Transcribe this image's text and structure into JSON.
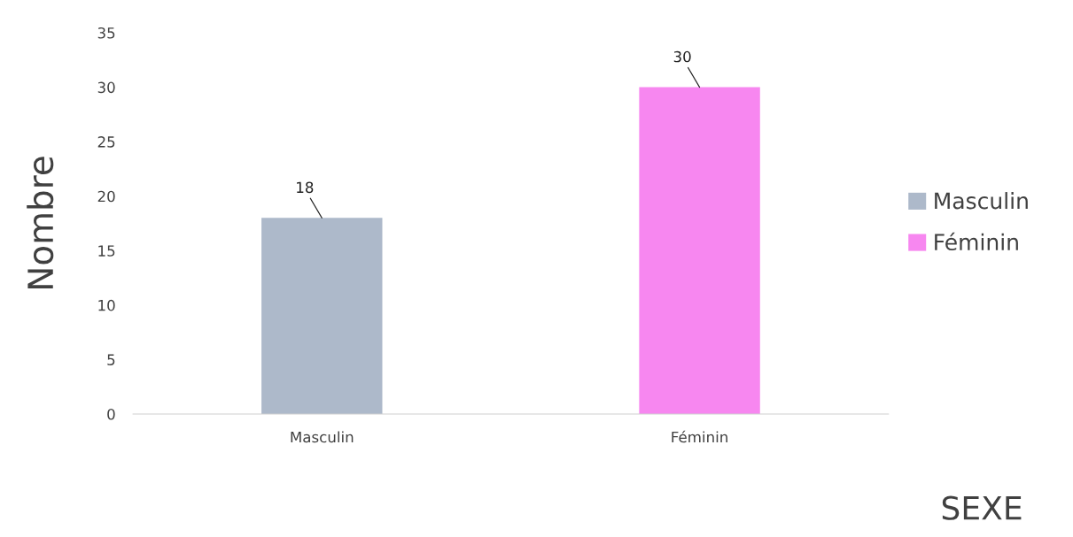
{
  "chart_data": {
    "type": "bar",
    "categories": [
      "Masculin",
      "Féminin"
    ],
    "series": [
      {
        "name": "Masculin",
        "color": "#adb9ca",
        "values": [
          18,
          null
        ]
      },
      {
        "name": "Féminin",
        "color": "#f787f0",
        "values": [
          null,
          30
        ]
      }
    ],
    "xlabel": "SEXE",
    "ylabel": "Nombre",
    "ylim": [
      0,
      35
    ],
    "yticks": [
      0,
      5,
      10,
      15,
      20,
      25,
      30,
      35
    ],
    "grid": false,
    "legend": "right",
    "data_labels": true
  }
}
